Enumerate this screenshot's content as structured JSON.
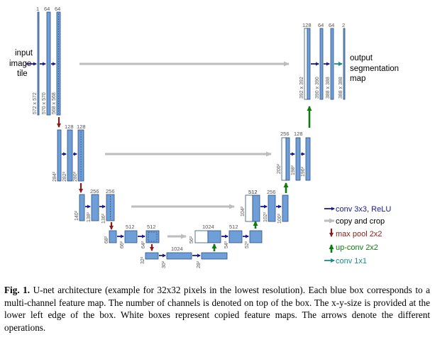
{
  "caption": {
    "label": "Fig. 1.",
    "text": "U-net architecture (example for 32x32 pixels in the lowest resolution). Each blue box corresponds to a multi-channel feature map. The number of channels is denoted on top of the box. The x-y-size is provided at the lower left edge of the box. White boxes represent copied feature maps. The arrows denote the different operations."
  },
  "side_labels": {
    "input": [
      "input",
      "image",
      "tile"
    ],
    "output": [
      "output",
      "segmentation",
      "map"
    ]
  },
  "channels": {
    "l1_in": "1",
    "l1_a": "64",
    "l1_b": "64",
    "l2_a": "128",
    "l2_b": "128",
    "l3_a": "256",
    "l3_b": "256",
    "l4_a": "512",
    "l4_b": "512",
    "l5_a": "1024",
    "d4_a": "1024",
    "d4_b": "512",
    "d4_c": "512",
    "d3_a": "512",
    "d3_b": "256",
    "d2_a": "256",
    "d2_b": "128",
    "d1_a": "128",
    "d1_b": "64",
    "d1_c": "64",
    "d1_d": "2"
  },
  "sizes": {
    "l1_in": "572 x 572",
    "l1_a": "570 x 570",
    "l1_b": "568 x 568",
    "l2_in": "284²",
    "l2_a": "282²",
    "l2_b": "280²",
    "l3_in": "140²",
    "l3_a": "138²",
    "l3_b": "136²",
    "l4_in": "68²",
    "l4_a": "66²",
    "l4_b": "64²",
    "l5_in": "32²",
    "l5_a": "30²",
    "l5_b": "28²",
    "d4_in": "56²",
    "d4_a": "54²",
    "d4_b": "52²",
    "d3_in": "104²",
    "d3_a": "102²",
    "d3_b": "100²",
    "d2_in": "200²",
    "d2_a": "198²",
    "d2_b": "196²",
    "d1_in": "392 x 392",
    "d1_a": "390 x 390",
    "d1_b": "388 x 388",
    "d1_c": "388 x 388"
  },
  "legend": [
    {
      "icon": "navy-right-arrow-icon",
      "label": "conv 3x3, ReLU",
      "color": "#1a1a8c"
    },
    {
      "icon": "gray-right-arrow-icon",
      "label": "copy and crop",
      "color": "#000000"
    },
    {
      "icon": "red-down-arrow-icon",
      "label": "max pool 2x2",
      "color": "#8b1a1a"
    },
    {
      "icon": "green-up-arrow-icon",
      "label": "up-conv 2x2",
      "color": "#0f7a0f"
    },
    {
      "icon": "teal-right-arrow-icon",
      "label": "conv 1x1",
      "color": "#1a8c8c"
    }
  ],
  "colors": {
    "box_fill": "#6f9fd8",
    "box_stroke": "#2f4f7f",
    "conv_arrow": "#1a1a8c",
    "copy_arrow": "#bdbdbd",
    "pool_arrow": "#8b1a1a",
    "upconv_arrow": "#0f7a0f",
    "conv1x1_arrow": "#1a8c8c"
  }
}
